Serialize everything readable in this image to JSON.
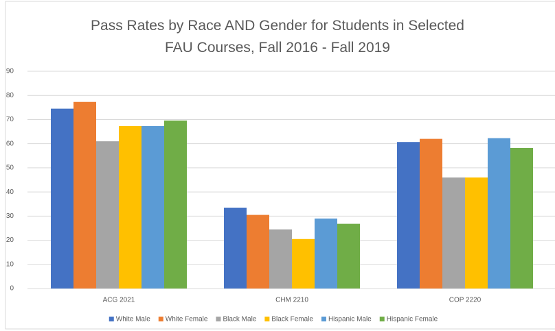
{
  "chart_data": {
    "type": "bar",
    "title": "Pass Rates by Race AND Gender for Students in Selected FAU Courses, Fall 2016 - Fall 2019",
    "categories": [
      "ACG 2021",
      "CHM 2210",
      "COP 2220"
    ],
    "series": [
      {
        "name": "White Male",
        "color": "#4472c4",
        "values": [
          74.5,
          33.5,
          60.7
        ]
      },
      {
        "name": "White Female",
        "color": "#ed7d31",
        "values": [
          77.3,
          30.5,
          62
        ]
      },
      {
        "name": "Black Male",
        "color": "#a5a5a5",
        "values": [
          61,
          24.5,
          46
        ]
      },
      {
        "name": "Black Female",
        "color": "#ffc000",
        "values": [
          67.3,
          20.5,
          46
        ]
      },
      {
        "name": "Hispanic Male",
        "color": "#5b9bd5",
        "values": [
          67.3,
          29,
          62.3
        ]
      },
      {
        "name": "Hispanic Female",
        "color": "#70ad47",
        "values": [
          69.6,
          26.8,
          58.2
        ]
      }
    ],
    "ylim": [
      0,
      90
    ],
    "yticks": [
      0,
      10,
      20,
      30,
      40,
      50,
      60,
      70,
      80,
      90
    ],
    "grid": true,
    "legend": "bottom"
  }
}
